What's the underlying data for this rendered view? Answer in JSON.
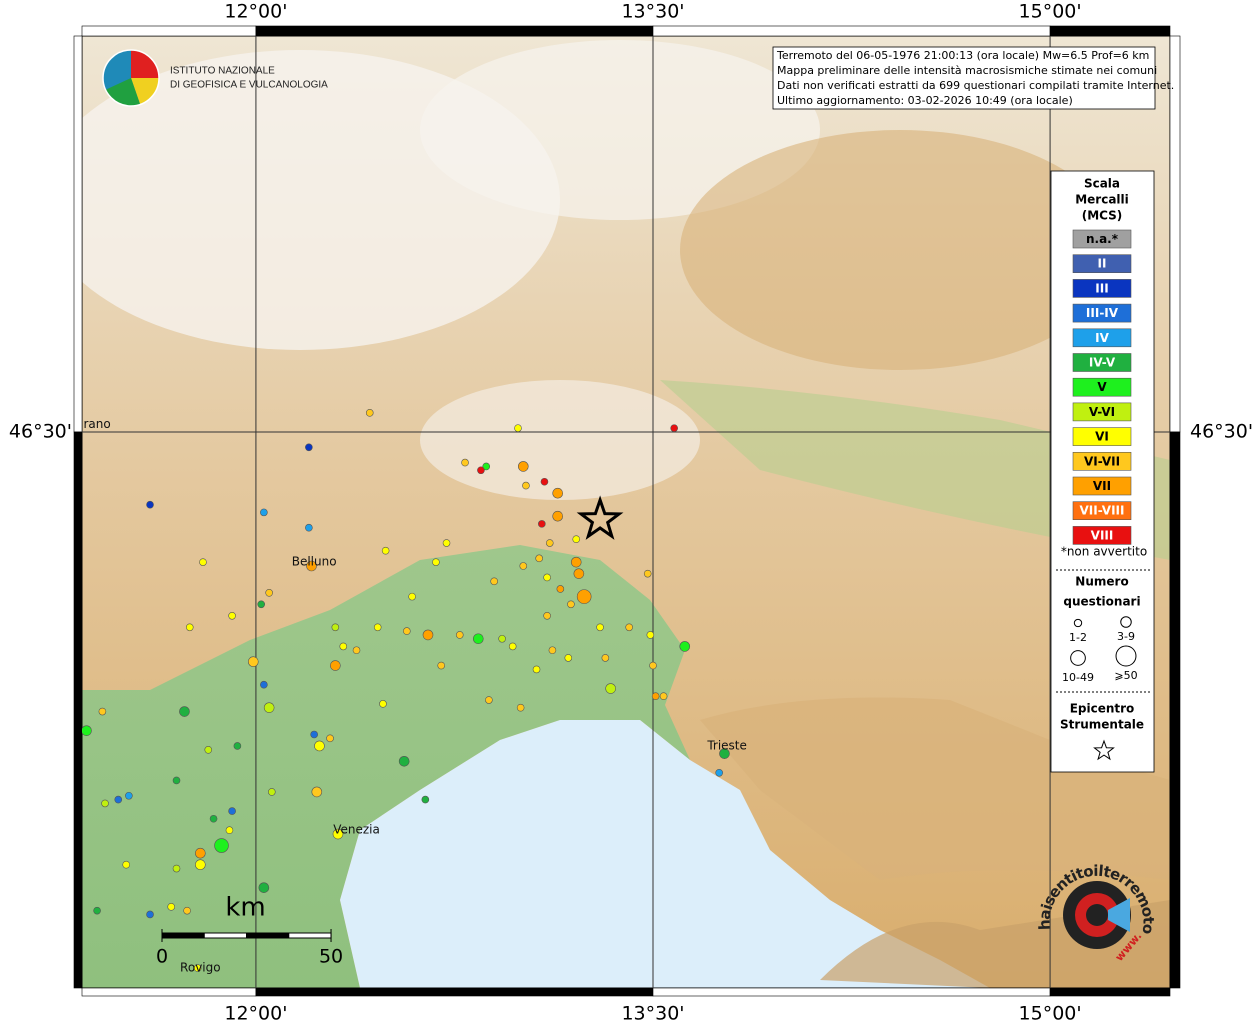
{
  "header": {
    "institute": [
      "ISTITUTO NAZIONALE",
      "DI GEOFISICA E VULCANOLOGIA"
    ]
  },
  "info": [
    "Terremoto del 06-05-1976 21:00:13 (ora locale) Mw=6.5 Prof=6 km",
    "Mappa preliminare delle intensità macrosismiche stimate nei comuni",
    "Dati non verificati estratti da 699 questionari compilati tramite Internet.",
    "Ultimo aggiornamento: 03-02-2026 10:49 (ora locale)"
  ],
  "map": {
    "lonlim": [
      11.343,
      15.453
    ],
    "latlim": [
      45.048,
      47.534
    ],
    "lonticks": [
      {
        "value": 12,
        "label": "12°00'"
      },
      {
        "value": 13.5,
        "label": "13°30'"
      },
      {
        "value": 15,
        "label": "15°00'"
      }
    ],
    "latticks": [
      {
        "value": 46.5,
        "label": "46°30'"
      }
    ],
    "cities": [
      {
        "name": "rano",
        "lon": 11.4,
        "lat": 46.52
      },
      {
        "name": "Belluno",
        "lon": 12.22,
        "lat": 46.16
      },
      {
        "name": "Venezia",
        "lon": 12.38,
        "lat": 45.46
      },
      {
        "name": "Trieste",
        "lon": 13.78,
        "lat": 45.68
      },
      {
        "name": "Rovigo",
        "lon": 11.79,
        "lat": 45.1
      }
    ],
    "epicenter": {
      "lon": 13.3,
      "lat": 46.27
    },
    "points": [
      [
        12.43,
        46.55,
        9,
        0
      ],
      [
        12.2,
        46.46,
        2,
        0
      ],
      [
        11.6,
        46.31,
        2,
        0
      ],
      [
        12.99,
        46.51,
        8,
        0
      ],
      [
        12.79,
        46.42,
        9,
        0
      ],
      [
        12.87,
        46.41,
        6,
        0
      ],
      [
        12.85,
        46.4,
        12,
        0
      ],
      [
        13.01,
        46.41,
        10,
        1
      ],
      [
        13.09,
        46.37,
        12,
        0
      ],
      [
        13.02,
        46.36,
        9,
        0
      ],
      [
        13.14,
        46.34,
        10,
        1
      ],
      [
        13.14,
        46.28,
        10,
        1
      ],
      [
        13.08,
        46.26,
        12,
        0
      ],
      [
        13.21,
        46.22,
        8,
        0
      ],
      [
        13.11,
        46.21,
        9,
        0
      ],
      [
        13.07,
        46.17,
        9,
        0
      ],
      [
        13.21,
        46.16,
        10,
        1
      ],
      [
        13.22,
        46.13,
        10,
        1
      ],
      [
        13.24,
        46.07,
        10,
        2
      ],
      [
        13.01,
        46.15,
        9,
        0
      ],
      [
        12.72,
        46.21,
        8,
        0
      ],
      [
        12.68,
        46.16,
        8,
        0
      ],
      [
        12.9,
        46.11,
        9,
        0
      ],
      [
        13.1,
        46.12,
        8,
        0
      ],
      [
        13.15,
        46.09,
        10,
        0
      ],
      [
        13.48,
        46.13,
        9,
        0
      ],
      [
        13.19,
        46.05,
        9,
        0
      ],
      [
        13.1,
        46.02,
        9,
        0
      ],
      [
        13.3,
        45.99,
        8,
        0
      ],
      [
        13.41,
        45.99,
        9,
        0
      ],
      [
        13.49,
        45.97,
        8,
        0
      ],
      [
        13.62,
        45.94,
        6,
        1
      ],
      [
        12.59,
        46.07,
        8,
        0
      ],
      [
        12.49,
        46.19,
        8,
        0
      ],
      [
        12.21,
        46.15,
        10,
        1
      ],
      [
        12.2,
        46.25,
        4,
        0
      ],
      [
        12.03,
        46.29,
        4,
        0
      ],
      [
        12.05,
        46.08,
        9,
        0
      ],
      [
        12.02,
        46.05,
        5,
        0
      ],
      [
        11.91,
        46.02,
        8,
        0
      ],
      [
        11.8,
        46.16,
        8,
        0
      ],
      [
        11.75,
        45.99,
        8,
        0
      ],
      [
        12.3,
        45.99,
        7,
        0
      ],
      [
        12.46,
        45.99,
        8,
        0
      ],
      [
        12.57,
        45.98,
        9,
        0
      ],
      [
        12.65,
        45.97,
        10,
        1
      ],
      [
        12.77,
        45.97,
        9,
        0
      ],
      [
        12.84,
        45.96,
        6,
        1
      ],
      [
        12.93,
        45.96,
        7,
        0
      ],
      [
        12.97,
        45.94,
        8,
        0
      ],
      [
        13.12,
        45.93,
        9,
        0
      ],
      [
        12.33,
        45.94,
        8,
        0
      ],
      [
        12.38,
        45.93,
        9,
        0
      ],
      [
        12.3,
        45.89,
        10,
        1
      ],
      [
        11.99,
        45.9,
        9,
        1
      ],
      [
        12.03,
        45.84,
        3,
        0
      ],
      [
        12.7,
        45.89,
        9,
        0
      ],
      [
        13.06,
        45.88,
        8,
        0
      ],
      [
        13.18,
        45.91,
        8,
        0
      ],
      [
        13.32,
        45.91,
        9,
        0
      ],
      [
        13.34,
        45.83,
        7,
        1
      ],
      [
        13.5,
        45.89,
        9,
        0
      ],
      [
        13.51,
        45.81,
        10,
        0
      ],
      [
        13.54,
        45.81,
        9,
        0
      ],
      [
        12.05,
        45.78,
        7,
        1
      ],
      [
        11.73,
        45.77,
        5,
        1
      ],
      [
        11.42,
        45.77,
        9,
        0
      ],
      [
        11.36,
        45.72,
        6,
        1
      ],
      [
        12.22,
        45.71,
        3,
        0
      ],
      [
        12.28,
        45.7,
        9,
        0
      ],
      [
        12.24,
        45.68,
        8,
        1
      ],
      [
        11.82,
        45.67,
        7,
        0
      ],
      [
        11.93,
        45.68,
        5,
        0
      ],
      [
        12.48,
        45.79,
        8,
        0
      ],
      [
        12.88,
        45.8,
        9,
        0
      ],
      [
        13,
        45.78,
        9,
        0
      ],
      [
        12.56,
        45.64,
        5,
        1
      ],
      [
        13.77,
        45.66,
        5,
        1
      ],
      [
        13.75,
        45.61,
        4,
        0
      ],
      [
        12.23,
        45.56,
        9,
        1
      ],
      [
        11.7,
        45.59,
        5,
        0
      ],
      [
        11.52,
        45.55,
        4,
        0
      ],
      [
        11.48,
        45.54,
        3,
        0
      ],
      [
        11.43,
        45.53,
        7,
        0
      ],
      [
        12.06,
        45.56,
        7,
        0
      ],
      [
        12.64,
        45.54,
        5,
        0
      ],
      [
        11.91,
        45.51,
        3,
        0
      ],
      [
        11.84,
        45.49,
        5,
        0
      ],
      [
        11.9,
        45.46,
        8,
        0
      ],
      [
        11.87,
        45.42,
        6,
        2
      ],
      [
        11.79,
        45.4,
        10,
        1
      ],
      [
        11.79,
        45.37,
        8,
        1
      ],
      [
        12.31,
        45.45,
        8,
        1
      ],
      [
        11.7,
        45.36,
        7,
        0
      ],
      [
        11.51,
        45.37,
        8,
        0
      ],
      [
        12.03,
        45.31,
        5,
        1
      ],
      [
        11.68,
        45.26,
        8,
        0
      ],
      [
        11.74,
        45.25,
        9,
        0
      ],
      [
        11.4,
        45.25,
        5,
        0
      ],
      [
        11.6,
        45.24,
        3,
        0
      ],
      [
        11.78,
        45.1,
        8,
        0
      ],
      [
        13.58,
        46.51,
        12,
        0
      ]
    ]
  },
  "legend": {
    "title": [
      "Scala",
      "Mercalli",
      "(MCS)"
    ],
    "classes": [
      {
        "label": "n.a.*",
        "color": "#a0a0a0"
      },
      {
        "label": "II",
        "color": "#4060b0"
      },
      {
        "label": "III",
        "color": "#0a35c0"
      },
      {
        "label": "III-IV",
        "color": "#1e6fd8"
      },
      {
        "label": "IV",
        "color": "#1ea0ea"
      },
      {
        "label": "IV-V",
        "color": "#20b040"
      },
      {
        "label": "V",
        "color": "#1ef01e"
      },
      {
        "label": "V-VI",
        "color": "#c0f010"
      },
      {
        "label": "VI",
        "color": "#ffff00"
      },
      {
        "label": "VI-VII",
        "color": "#ffc81e"
      },
      {
        "label": "VII",
        "color": "#ffa000"
      },
      {
        "label": "VII-VIII",
        "color": "#ff7010"
      },
      {
        "label": "VIII",
        "color": "#e81010"
      }
    ],
    "note": "*non avvertito",
    "size_title": [
      "Numero",
      "questionari"
    ],
    "sizes": [
      "1-2",
      "3-9",
      "10-49",
      "⩾50"
    ],
    "epicenter_title": [
      "Epicentro",
      "Strumentale"
    ]
  },
  "scalebar": {
    "unit": "km",
    "ticks": [
      0,
      50
    ]
  },
  "logo2": {
    "text": "haisentitoilterremoto.it",
    "www": "www."
  }
}
